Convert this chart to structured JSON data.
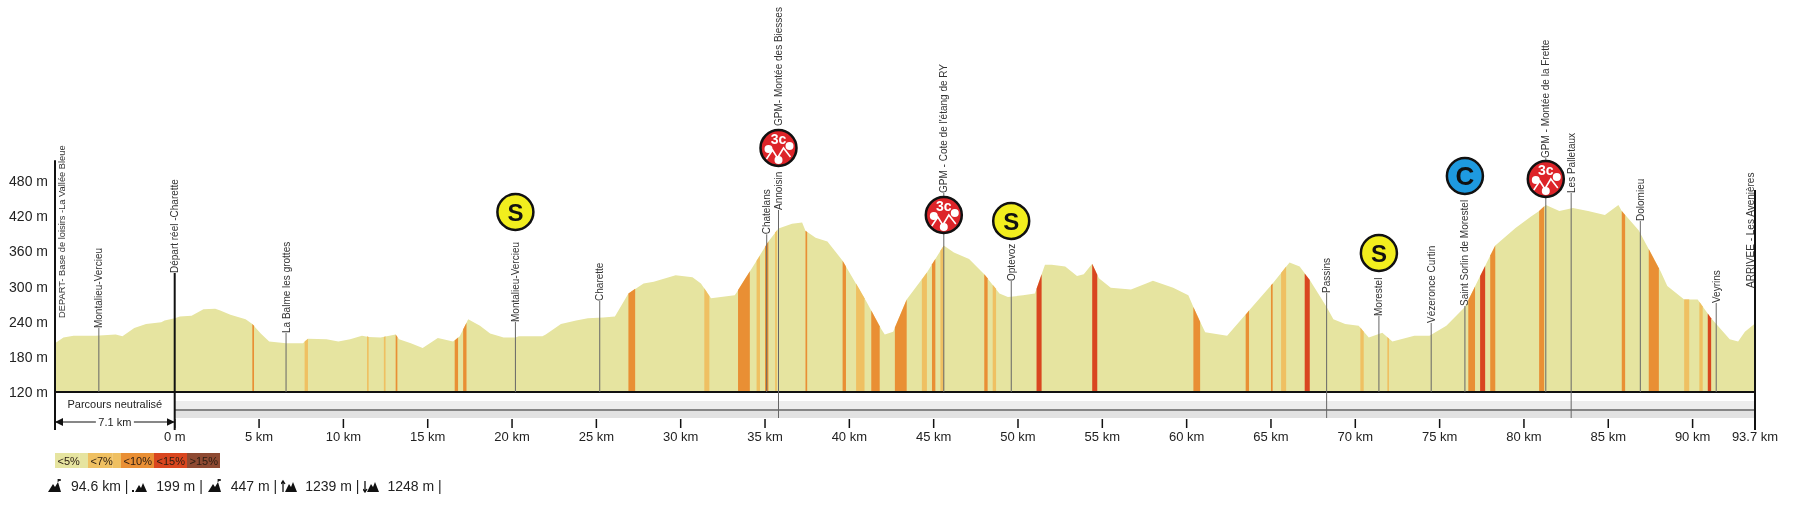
{
  "chart_data": {
    "type": "area",
    "series": [
      {
        "name": "<5%",
        "color": "#e6e4a0",
        "x": [
          -7.1,
          -6.6,
          -6.0,
          -4.7,
          -3.5,
          -3.1,
          -2.4,
          -1.7,
          -0.8,
          -0.6,
          0,
          0.3,
          1.0,
          1.7,
          2.4,
          2.7,
          3.3,
          4.2,
          4.6,
          5.1,
          5.6,
          6.6,
          7.6,
          7.9,
          9.0,
          9.7,
          10.4,
          11.1,
          11.5,
          12.2,
          13.1,
          13.3,
          14.0,
          14.7,
          15.6,
          16.5,
          16.9,
          17.4,
          18.1,
          18.7,
          19.5,
          20.2,
          20.4,
          21.8,
          22.0,
          22.9,
          23.8,
          24.5,
          25.4,
          26.1,
          26.9,
          27.8,
          28.4,
          29.7,
          30.7,
          31.2,
          31.8,
          33.2,
          33.3,
          34.5,
          35.2,
          35.8,
          36.6,
          37.2,
          37.4,
          38.0,
          38.7,
          39.6,
          41.0,
          41.9,
          42.1,
          42.6,
          43.4,
          44.6,
          45.6,
          46.2,
          47.1,
          48.0,
          48.9,
          49.4,
          50.3,
          51.0,
          51.6,
          52.0,
          52.8,
          53.5,
          53.9,
          54.4,
          54.8,
          55.5,
          56.7,
          57.6,
          58.0,
          59.2,
          60.1,
          60.4,
          60.8,
          61.1,
          62.4,
          63.7,
          65.1,
          66.1,
          66.7,
          67.3,
          68.3,
          68.7,
          69.4,
          70.2,
          70.8,
          71.6,
          72.2,
          73.5,
          74.4,
          75.4,
          76.5,
          77.4,
          78.3,
          79.5,
          80.4,
          80.9,
          81.3,
          82.1,
          82.9,
          83.8,
          84.8,
          85.6,
          85.8,
          86.8,
          88.1,
          88.5,
          89.5,
          90.3,
          91.1,
          92.2,
          92.7,
          93.1,
          93.7
        ],
        "values": [
          203,
          213,
          216,
          216,
          218,
          215,
          229,
          236,
          239,
          242,
          246,
          249,
          250,
          261,
          262,
          259,
          252,
          244,
          236,
          220,
          206,
          203,
          203,
          211,
          210,
          206,
          210,
          216,
          214,
          213,
          218,
          210,
          203,
          195,
          212,
          206,
          215,
          244,
          233,
          220,
          213,
          213,
          215,
          215,
          218,
          236,
          242,
          246,
          247,
          249,
          288,
          305,
          308,
          319,
          316,
          305,
          280,
          285,
          289,
          344,
          377,
          399,
          407,
          409,
          395,
          383,
          377,
          344,
          275,
          227,
          218,
          223,
          278,
          324,
          370,
          358,
          347,
          321,
          288,
          282,
          285,
          288,
          337,
          337,
          334,
          318,
          321,
          339,
          314,
          298,
          295,
          305,
          310,
          298,
          285,
          265,
          240,
          222,
          216,
          259,
          305,
          341,
          334,
          311,
          265,
          244,
          236,
          233,
          213,
          221,
          206,
          216,
          216,
          233,
          265,
          318,
          370,
          400,
          419,
          429,
          439,
          429,
          434,
          429,
          422,
          439,
          429,
          396,
          326,
          301,
          278,
          278,
          246,
          210,
          206,
          223,
          237
        ]
      },
      {
        "name": "<7%",
        "color": "#efc062",
        "x": [
          7.7,
          7.9
        ],
        "values": [
          206,
          211
        ]
      },
      {
        "name": "<10%",
        "color": "#e98f34",
        "x": [
          4.6,
          4.7
        ],
        "values": [
          236,
          233
        ]
      },
      {
        "name": "<15%",
        "color": "#d9461f",
        "x": [
          51.1,
          51.4
        ],
        "values": [
          296,
          321
        ]
      },
      {
        "color": "#efc062",
        "x": [
          11.4,
          11.5
        ],
        "values": [
          215,
          214
        ]
      },
      {
        "color": "#efc062",
        "x": [
          12.4,
          12.5
        ],
        "values": [
          214,
          215
        ]
      },
      {
        "color": "#efc062",
        "x": [
          31.4,
          31.7
        ],
        "values": [
          297,
          284
        ]
      },
      {
        "color": "#efc062",
        "x": [
          34.5,
          34.7
        ],
        "values": [
          344,
          353
        ]
      },
      {
        "color": "#efc062",
        "x": [
          35.6,
          35.7
        ],
        "values": [
          392,
          396
        ]
      },
      {
        "color": "#efc062",
        "x": [
          40.4,
          40.9
        ],
        "values": [
          305,
          280
        ]
      },
      {
        "color": "#efc062",
        "x": [
          44.3,
          44.6
        ],
        "values": [
          312,
          324
        ]
      },
      {
        "color": "#efc062",
        "x": [
          45.4,
          45.6
        ],
        "values": [
          361,
          370
        ]
      },
      {
        "color": "#efc062",
        "x": [
          48.5,
          48.7
        ],
        "values": [
          303,
          296
        ]
      },
      {
        "color": "#efc062",
        "x": [
          65.6,
          65.9
        ],
        "values": [
          323,
          334
        ]
      },
      {
        "color": "#efc062",
        "x": [
          70.3,
          70.5
        ],
        "values": [
          230,
          223
        ]
      },
      {
        "color": "#efc062",
        "x": [
          71.9,
          72.0
        ],
        "values": [
          214,
          211
        ]
      },
      {
        "color": "#efc062",
        "x": [
          89.5,
          89.8
        ],
        "values": [
          278,
          278
        ]
      },
      {
        "color": "#efc062",
        "x": [
          90.4,
          90.6
        ],
        "values": [
          274,
          266
        ]
      },
      {
        "color": "#e98f34",
        "x": [
          13.1,
          13.2
        ],
        "values": [
          218,
          214
        ]
      },
      {
        "color": "#e98f34",
        "x": [
          16.6,
          16.8
        ],
        "values": [
          208,
          213
        ]
      },
      {
        "color": "#e98f34",
        "x": [
          17.1,
          17.3
        ],
        "values": [
          227,
          238
        ]
      },
      {
        "color": "#e98f34",
        "x": [
          26.9,
          27.3
        ],
        "values": [
          288,
          296
        ]
      },
      {
        "color": "#e98f34",
        "x": [
          33.4,
          34.1
        ],
        "values": [
          294,
          326
        ]
      },
      {
        "color": "#e98f34",
        "x": [
          35.0,
          35.2
        ],
        "values": [
          368,
          377
        ]
      },
      {
        "color": "#e98f34",
        "x": [
          37.4,
          37.5
        ],
        "values": [
          395,
          393
        ]
      },
      {
        "color": "#e98f34",
        "x": [
          39.6,
          39.8
        ],
        "values": [
          344,
          334
        ]
      },
      {
        "color": "#e98f34",
        "x": [
          41.3,
          41.8
        ],
        "values": [
          259,
          232
        ]
      },
      {
        "color": "#e98f34",
        "x": [
          42.7,
          43.4
        ],
        "values": [
          230,
          278
        ]
      },
      {
        "color": "#e98f34",
        "x": [
          44.9,
          45.1
        ],
        "values": [
          338,
          347
        ]
      },
      {
        "color": "#e98f34",
        "x": [
          48.0,
          48.2
        ],
        "values": [
          321,
          314
        ]
      },
      {
        "color": "#e98f34",
        "x": [
          60.4,
          60.8
        ],
        "values": [
          265,
          240
        ]
      },
      {
        "color": "#e98f34",
        "x": [
          63.5,
          63.7
        ],
        "values": [
          252,
          259
        ]
      },
      {
        "color": "#e98f34",
        "x": [
          65.0,
          65.1
        ],
        "values": [
          302,
          305
        ]
      },
      {
        "color": "#e98f34",
        "x": [
          76.7,
          77.1
        ],
        "values": [
          277,
          300
        ]
      },
      {
        "color": "#e98f34",
        "x": [
          78.0,
          78.3
        ],
        "values": [
          353,
          370
        ]
      },
      {
        "color": "#e98f34",
        "x": [
          80.9,
          81.2
        ],
        "values": [
          429,
          437
        ]
      },
      {
        "color": "#e98f34",
        "x": [
          85.8,
          86.0
        ],
        "values": [
          429,
          422
        ]
      },
      {
        "color": "#e98f34",
        "x": [
          87.4,
          88.0
        ],
        "values": [
          364,
          331
        ]
      },
      {
        "color": "#d9461f",
        "x": [
          54.4,
          54.7
        ],
        "values": [
          339,
          320
        ]
      },
      {
        "color": "#d9461f",
        "x": [
          67.0,
          67.3
        ],
        "values": [
          322,
          311
        ]
      },
      {
        "color": "#d9461f",
        "x": [
          77.4,
          77.7
        ],
        "values": [
          318,
          335
        ]
      },
      {
        "color": "#d9461f",
        "x": [
          90.9,
          91.1
        ],
        "values": [
          254,
          246
        ]
      }
    ],
    "xlim": [
      -7.1,
      93.7
    ],
    "xticks": [
      {
        "value": 0,
        "label": "0 m"
      },
      {
        "value": 5,
        "label": "5 km"
      },
      {
        "value": 10,
        "label": "10 km"
      },
      {
        "value": 15,
        "label": "15 km"
      },
      {
        "value": 20,
        "label": "20 km"
      },
      {
        "value": 25,
        "label": "25 km"
      },
      {
        "value": 30,
        "label": "30 km"
      },
      {
        "value": 35,
        "label": "35 km"
      },
      {
        "value": 40,
        "label": "40 km"
      },
      {
        "value": 45,
        "label": "45 km"
      },
      {
        "value": 50,
        "label": "50 km"
      },
      {
        "value": 55,
        "label": "55 km"
      },
      {
        "value": 60,
        "label": "60 km"
      },
      {
        "value": 65,
        "label": "65 km"
      },
      {
        "value": 70,
        "label": "70 km"
      },
      {
        "value": 75,
        "label": "75 km"
      },
      {
        "value": 80,
        "label": "80 km"
      },
      {
        "value": 85,
        "label": "85 km"
      },
      {
        "value": 90,
        "label": "90 km"
      },
      {
        "value": 93.7,
        "label": "93.7 km"
      }
    ],
    "ylim": [
      120,
      515
    ],
    "yticks": [
      {
        "value": 120,
        "label": "120 m"
      },
      {
        "value": 180,
        "label": "180 m"
      },
      {
        "value": 240,
        "label": "240 m"
      },
      {
        "value": 300,
        "label": "300 m"
      },
      {
        "value": 360,
        "label": "360 m"
      },
      {
        "value": 420,
        "label": "420 m"
      },
      {
        "value": 480,
        "label": "480 m"
      }
    ],
    "legend": "bottom left",
    "annotations": [
      "DEPART- Base de loisirs -La Vallée Bleue",
      {
        "text": "Montalieu-Vercieu",
        "x": -4.5,
        "y": 216
      },
      "Départ réel -Charette",
      {
        "text": "La Balme les grottes",
        "x": 6.6,
        "y": 203
      },
      "S",
      {
        "text": "Montalieu-Vercieu",
        "x": 20.2,
        "y": 213
      },
      {
        "text": "Charette",
        "x": 25.2,
        "y": 247
      },
      {
        "text": "Chatelans",
        "x": 35.1,
        "y": 372
      },
      "GPM- Montée des Biesses",
      "3c",
      {
        "text": "Annoisin",
        "x": 35.8,
        "y": 399
      },
      "GPM - Cote de l'étang de RY",
      "3c",
      "S",
      {
        "text": "Optevoz",
        "x": 49.6,
        "y": 283
      },
      {
        "text": "Passins",
        "x": 68.3,
        "y": 265
      },
      "S",
      {
        "text": "Morestel",
        "x": 71.4,
        "y": 219
      },
      {
        "text": "Vézeronce Curtin",
        "x": 74.5,
        "y": 218
      },
      "C",
      {
        "text": "Saint Sorlin de Morestel",
        "x": 76.5,
        "y": 265
      },
      "GPM - Montée de la Frette",
      "3c",
      {
        "text": "Les Palletaux",
        "x": 82.8,
        "y": 433
      },
      {
        "text": "Dolomieu",
        "x": 86.9,
        "y": 391
      },
      {
        "text": "Veyrins",
        "x": 91.4,
        "y": 236
      },
      "ARRIVEE - Les Avenières",
      "Parcours neutralisé",
      "7.1 km",
      ">15%",
      "94.6 km |",
      "199 m |",
      "447 m |",
      "1239 m |",
      "1248 m |"
    ]
  }
}
